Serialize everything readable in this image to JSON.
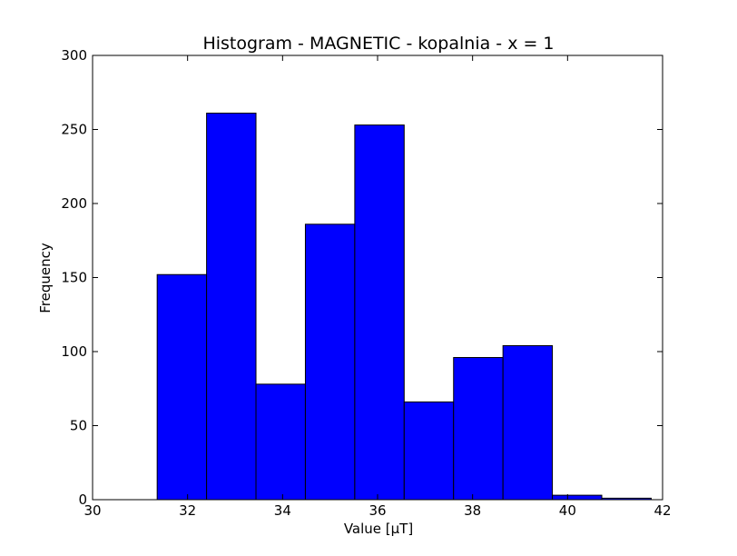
{
  "chart_data": {
    "type": "bar",
    "title": "Histogram - MAGNETIC - kopalnia - x = 1",
    "xlabel": "Value [µT]",
    "ylabel": "Frequency",
    "xlim": [
      30,
      42
    ],
    "ylim": [
      0,
      300
    ],
    "x_ticks": [
      30,
      32,
      34,
      36,
      38,
      40,
      42
    ],
    "y_ticks": [
      0,
      50,
      100,
      150,
      200,
      250,
      300
    ],
    "grid": false,
    "bar_color": "#0000ff",
    "bins": [
      {
        "x0": 31.36,
        "x1": 32.4,
        "value": 152
      },
      {
        "x0": 32.4,
        "x1": 33.44,
        "value": 261
      },
      {
        "x0": 33.44,
        "x1": 34.48,
        "value": 78
      },
      {
        "x0": 34.48,
        "x1": 35.52,
        "value": 186
      },
      {
        "x0": 35.52,
        "x1": 36.56,
        "value": 253
      },
      {
        "x0": 36.56,
        "x1": 37.6,
        "value": 66
      },
      {
        "x0": 37.6,
        "x1": 38.64,
        "value": 96
      },
      {
        "x0": 38.64,
        "x1": 39.68,
        "value": 104
      },
      {
        "x0": 39.68,
        "x1": 40.72,
        "value": 3
      },
      {
        "x0": 40.72,
        "x1": 41.76,
        "value": 1
      }
    ]
  }
}
